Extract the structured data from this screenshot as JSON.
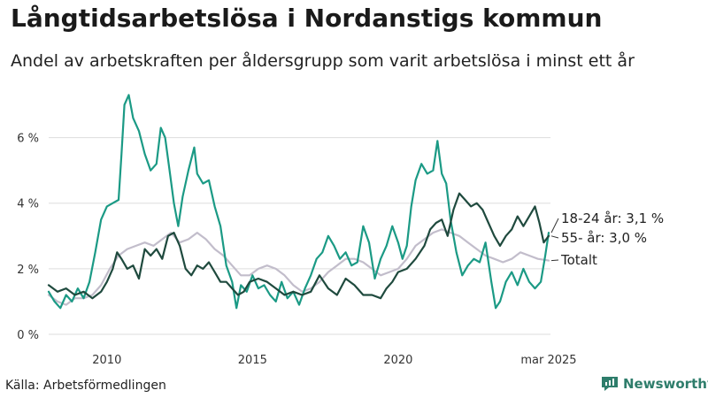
{
  "title": "Långtidsarbetslösa i Nordanstigs kommun",
  "subtitle": "Andel av arbetskraften per åldersgrupp som varit arbetslösa i minst ett år",
  "source": "Källa: Arbetsförmedlingen",
  "brand": "Newsworthy",
  "colors": {
    "young": "#1b9a85",
    "old": "#1f4a3e",
    "total": "#c2bdcb",
    "grid": "#dddddd",
    "brand": "#2e7d6b"
  },
  "chart_data": {
    "type": "line",
    "title": "Långtidsarbetslösa i Nordanstigs kommun",
    "xlabel": "",
    "ylabel": "",
    "xlim": [
      2008.0,
      2025.17
    ],
    "ylim": [
      0,
      7.5
    ],
    "y_ticks": [
      {
        "value": 0,
        "label": "0 %"
      },
      {
        "value": 2,
        "label": "2 %"
      },
      {
        "value": 4,
        "label": "4 %"
      },
      {
        "value": 6,
        "label": "6 %"
      }
    ],
    "x_ticks": [
      {
        "value": 2010,
        "label": "2010"
      },
      {
        "value": 2015,
        "label": "2015"
      },
      {
        "value": 2020,
        "label": "2020"
      },
      {
        "value": 2025.17,
        "label": "mar 2025"
      }
    ],
    "series": [
      {
        "name": "Totalt",
        "label": "Totalt",
        "key": "total",
        "points": [
          [
            2008.0,
            1.2
          ],
          [
            2008.3,
            1.0
          ],
          [
            2008.6,
            0.9
          ],
          [
            2008.9,
            1.1
          ],
          [
            2009.2,
            1.1
          ],
          [
            2009.5,
            1.2
          ],
          [
            2009.8,
            1.5
          ],
          [
            2010.1,
            2.0
          ],
          [
            2010.4,
            2.4
          ],
          [
            2010.7,
            2.6
          ],
          [
            2011.0,
            2.7
          ],
          [
            2011.3,
            2.8
          ],
          [
            2011.6,
            2.7
          ],
          [
            2011.9,
            2.9
          ],
          [
            2012.2,
            3.1
          ],
          [
            2012.5,
            2.8
          ],
          [
            2012.8,
            2.9
          ],
          [
            2013.1,
            3.1
          ],
          [
            2013.4,
            2.9
          ],
          [
            2013.7,
            2.6
          ],
          [
            2014.0,
            2.4
          ],
          [
            2014.3,
            2.1
          ],
          [
            2014.6,
            1.8
          ],
          [
            2014.9,
            1.8
          ],
          [
            2015.2,
            2.0
          ],
          [
            2015.5,
            2.1
          ],
          [
            2015.8,
            2.0
          ],
          [
            2016.1,
            1.8
          ],
          [
            2016.4,
            1.5
          ],
          [
            2016.7,
            1.3
          ],
          [
            2017.0,
            1.4
          ],
          [
            2017.3,
            1.6
          ],
          [
            2017.6,
            1.9
          ],
          [
            2017.9,
            2.1
          ],
          [
            2018.2,
            2.3
          ],
          [
            2018.5,
            2.3
          ],
          [
            2018.8,
            2.2
          ],
          [
            2019.1,
            2.0
          ],
          [
            2019.4,
            1.8
          ],
          [
            2019.7,
            1.9
          ],
          [
            2020.0,
            2.0
          ],
          [
            2020.3,
            2.3
          ],
          [
            2020.6,
            2.7
          ],
          [
            2020.9,
            2.9
          ],
          [
            2021.2,
            3.1
          ],
          [
            2021.5,
            3.2
          ],
          [
            2021.8,
            3.1
          ],
          [
            2022.1,
            3.0
          ],
          [
            2022.4,
            2.8
          ],
          [
            2022.7,
            2.6
          ],
          [
            2023.0,
            2.4
          ],
          [
            2023.3,
            2.3
          ],
          [
            2023.6,
            2.2
          ],
          [
            2023.9,
            2.3
          ],
          [
            2024.2,
            2.5
          ],
          [
            2024.5,
            2.4
          ],
          [
            2024.8,
            2.3
          ],
          [
            2025.17,
            2.25
          ]
        ]
      },
      {
        "name": "18-24 år",
        "label": "18-24 år: 3,1 %",
        "key": "young",
        "points": [
          [
            2008.0,
            1.3
          ],
          [
            2008.2,
            1.0
          ],
          [
            2008.4,
            0.8
          ],
          [
            2008.6,
            1.2
          ],
          [
            2008.8,
            1.0
          ],
          [
            2009.0,
            1.4
          ],
          [
            2009.2,
            1.1
          ],
          [
            2009.4,
            1.6
          ],
          [
            2009.6,
            2.5
          ],
          [
            2009.8,
            3.5
          ],
          [
            2010.0,
            3.9
          ],
          [
            2010.2,
            4.0
          ],
          [
            2010.4,
            4.1
          ],
          [
            2010.5,
            5.5
          ],
          [
            2010.6,
            7.0
          ],
          [
            2010.75,
            7.3
          ],
          [
            2010.9,
            6.6
          ],
          [
            2011.1,
            6.2
          ],
          [
            2011.3,
            5.5
          ],
          [
            2011.5,
            5.0
          ],
          [
            2011.7,
            5.2
          ],
          [
            2011.85,
            6.3
          ],
          [
            2012.0,
            6.0
          ],
          [
            2012.15,
            5.0
          ],
          [
            2012.3,
            4.0
          ],
          [
            2012.45,
            3.3
          ],
          [
            2012.6,
            4.2
          ],
          [
            2012.8,
            5.0
          ],
          [
            2013.0,
            5.7
          ],
          [
            2013.1,
            4.9
          ],
          [
            2013.3,
            4.6
          ],
          [
            2013.5,
            4.7
          ],
          [
            2013.7,
            3.9
          ],
          [
            2013.9,
            3.3
          ],
          [
            2014.1,
            2.1
          ],
          [
            2014.3,
            1.6
          ],
          [
            2014.45,
            0.8
          ],
          [
            2014.6,
            1.5
          ],
          [
            2014.8,
            1.3
          ],
          [
            2015.0,
            1.8
          ],
          [
            2015.2,
            1.4
          ],
          [
            2015.4,
            1.5
          ],
          [
            2015.6,
            1.2
          ],
          [
            2015.8,
            1.0
          ],
          [
            2016.0,
            1.6
          ],
          [
            2016.2,
            1.1
          ],
          [
            2016.4,
            1.3
          ],
          [
            2016.6,
            0.9
          ],
          [
            2016.8,
            1.4
          ],
          [
            2017.0,
            1.8
          ],
          [
            2017.2,
            2.3
          ],
          [
            2017.4,
            2.5
          ],
          [
            2017.6,
            3.0
          ],
          [
            2017.8,
            2.7
          ],
          [
            2018.0,
            2.3
          ],
          [
            2018.2,
            2.5
          ],
          [
            2018.4,
            2.1
          ],
          [
            2018.6,
            2.2
          ],
          [
            2018.8,
            3.3
          ],
          [
            2019.0,
            2.8
          ],
          [
            2019.2,
            1.7
          ],
          [
            2019.4,
            2.3
          ],
          [
            2019.6,
            2.7
          ],
          [
            2019.8,
            3.3
          ],
          [
            2020.0,
            2.8
          ],
          [
            2020.15,
            2.3
          ],
          [
            2020.3,
            2.7
          ],
          [
            2020.45,
            3.9
          ],
          [
            2020.6,
            4.7
          ],
          [
            2020.8,
            5.2
          ],
          [
            2021.0,
            4.9
          ],
          [
            2021.2,
            5.0
          ],
          [
            2021.35,
            5.9
          ],
          [
            2021.5,
            4.9
          ],
          [
            2021.65,
            4.6
          ],
          [
            2021.8,
            3.5
          ],
          [
            2022.0,
            2.5
          ],
          [
            2022.2,
            1.8
          ],
          [
            2022.4,
            2.1
          ],
          [
            2022.6,
            2.3
          ],
          [
            2022.8,
            2.2
          ],
          [
            2023.0,
            2.8
          ],
          [
            2023.2,
            1.6
          ],
          [
            2023.35,
            0.8
          ],
          [
            2023.5,
            1.0
          ],
          [
            2023.7,
            1.6
          ],
          [
            2023.9,
            1.9
          ],
          [
            2024.1,
            1.5
          ],
          [
            2024.3,
            2.0
          ],
          [
            2024.5,
            1.6
          ],
          [
            2024.7,
            1.4
          ],
          [
            2024.9,
            1.6
          ],
          [
            2025.05,
            2.4
          ],
          [
            2025.17,
            3.1
          ]
        ]
      },
      {
        "name": "55- år",
        "label": "55- år: 3,0 %",
        "key": "old",
        "points": [
          [
            2008.0,
            1.5
          ],
          [
            2008.3,
            1.3
          ],
          [
            2008.6,
            1.4
          ],
          [
            2008.9,
            1.2
          ],
          [
            2009.2,
            1.3
          ],
          [
            2009.5,
            1.1
          ],
          [
            2009.8,
            1.3
          ],
          [
            2010.0,
            1.6
          ],
          [
            2010.2,
            2.0
          ],
          [
            2010.35,
            2.5
          ],
          [
            2010.5,
            2.3
          ],
          [
            2010.7,
            2.0
          ],
          [
            2010.9,
            2.1
          ],
          [
            2011.1,
            1.7
          ],
          [
            2011.3,
            2.6
          ],
          [
            2011.5,
            2.4
          ],
          [
            2011.7,
            2.6
          ],
          [
            2011.9,
            2.3
          ],
          [
            2012.1,
            3.0
          ],
          [
            2012.3,
            3.1
          ],
          [
            2012.5,
            2.7
          ],
          [
            2012.7,
            2.0
          ],
          [
            2012.9,
            1.8
          ],
          [
            2013.1,
            2.1
          ],
          [
            2013.3,
            2.0
          ],
          [
            2013.5,
            2.2
          ],
          [
            2013.7,
            1.9
          ],
          [
            2013.9,
            1.6
          ],
          [
            2014.1,
            1.6
          ],
          [
            2014.3,
            1.4
          ],
          [
            2014.5,
            1.2
          ],
          [
            2014.7,
            1.3
          ],
          [
            2014.9,
            1.6
          ],
          [
            2015.2,
            1.7
          ],
          [
            2015.5,
            1.6
          ],
          [
            2015.8,
            1.4
          ],
          [
            2016.1,
            1.2
          ],
          [
            2016.4,
            1.3
          ],
          [
            2016.7,
            1.2
          ],
          [
            2017.0,
            1.3
          ],
          [
            2017.3,
            1.8
          ],
          [
            2017.6,
            1.4
          ],
          [
            2017.9,
            1.2
          ],
          [
            2018.2,
            1.7
          ],
          [
            2018.5,
            1.5
          ],
          [
            2018.8,
            1.2
          ],
          [
            2019.1,
            1.2
          ],
          [
            2019.4,
            1.1
          ],
          [
            2019.6,
            1.4
          ],
          [
            2019.8,
            1.6
          ],
          [
            2020.0,
            1.9
          ],
          [
            2020.3,
            2.0
          ],
          [
            2020.6,
            2.3
          ],
          [
            2020.9,
            2.7
          ],
          [
            2021.1,
            3.2
          ],
          [
            2021.3,
            3.4
          ],
          [
            2021.5,
            3.5
          ],
          [
            2021.7,
            3.0
          ],
          [
            2021.9,
            3.8
          ],
          [
            2022.1,
            4.3
          ],
          [
            2022.3,
            4.1
          ],
          [
            2022.5,
            3.9
          ],
          [
            2022.7,
            4.0
          ],
          [
            2022.9,
            3.8
          ],
          [
            2023.1,
            3.4
          ],
          [
            2023.3,
            3.0
          ],
          [
            2023.5,
            2.7
          ],
          [
            2023.7,
            3.0
          ],
          [
            2023.9,
            3.2
          ],
          [
            2024.1,
            3.6
          ],
          [
            2024.3,
            3.3
          ],
          [
            2024.5,
            3.6
          ],
          [
            2024.7,
            3.9
          ],
          [
            2024.85,
            3.4
          ],
          [
            2025.0,
            2.8
          ],
          [
            2025.17,
            3.0
          ]
        ]
      }
    ]
  }
}
